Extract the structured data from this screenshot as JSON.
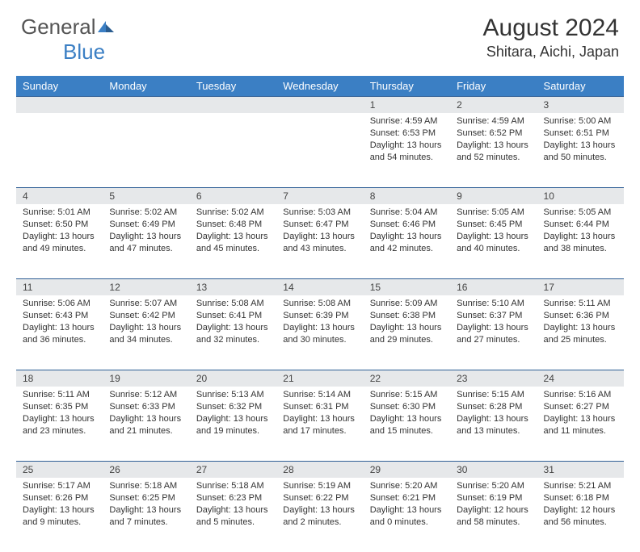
{
  "logo": {
    "word1": "General",
    "word2": "Blue"
  },
  "title": "August 2024",
  "location": "Shitara, Aichi, Japan",
  "colors": {
    "header_bg": "#3b7fc4",
    "daynum_bg": "#e6e8ea",
    "border": "#2f5f96"
  },
  "day_headers": [
    "Sunday",
    "Monday",
    "Tuesday",
    "Wednesday",
    "Thursday",
    "Friday",
    "Saturday"
  ],
  "weeks": [
    [
      null,
      null,
      null,
      null,
      {
        "n": "1",
        "sr": "4:59 AM",
        "ss": "6:53 PM",
        "dl": "13 hours and 54 minutes."
      },
      {
        "n": "2",
        "sr": "4:59 AM",
        "ss": "6:52 PM",
        "dl": "13 hours and 52 minutes."
      },
      {
        "n": "3",
        "sr": "5:00 AM",
        "ss": "6:51 PM",
        "dl": "13 hours and 50 minutes."
      }
    ],
    [
      {
        "n": "4",
        "sr": "5:01 AM",
        "ss": "6:50 PM",
        "dl": "13 hours and 49 minutes."
      },
      {
        "n": "5",
        "sr": "5:02 AM",
        "ss": "6:49 PM",
        "dl": "13 hours and 47 minutes."
      },
      {
        "n": "6",
        "sr": "5:02 AM",
        "ss": "6:48 PM",
        "dl": "13 hours and 45 minutes."
      },
      {
        "n": "7",
        "sr": "5:03 AM",
        "ss": "6:47 PM",
        "dl": "13 hours and 43 minutes."
      },
      {
        "n": "8",
        "sr": "5:04 AM",
        "ss": "6:46 PM",
        "dl": "13 hours and 42 minutes."
      },
      {
        "n": "9",
        "sr": "5:05 AM",
        "ss": "6:45 PM",
        "dl": "13 hours and 40 minutes."
      },
      {
        "n": "10",
        "sr": "5:05 AM",
        "ss": "6:44 PM",
        "dl": "13 hours and 38 minutes."
      }
    ],
    [
      {
        "n": "11",
        "sr": "5:06 AM",
        "ss": "6:43 PM",
        "dl": "13 hours and 36 minutes."
      },
      {
        "n": "12",
        "sr": "5:07 AM",
        "ss": "6:42 PM",
        "dl": "13 hours and 34 minutes."
      },
      {
        "n": "13",
        "sr": "5:08 AM",
        "ss": "6:41 PM",
        "dl": "13 hours and 32 minutes."
      },
      {
        "n": "14",
        "sr": "5:08 AM",
        "ss": "6:39 PM",
        "dl": "13 hours and 30 minutes."
      },
      {
        "n": "15",
        "sr": "5:09 AM",
        "ss": "6:38 PM",
        "dl": "13 hours and 29 minutes."
      },
      {
        "n": "16",
        "sr": "5:10 AM",
        "ss": "6:37 PM",
        "dl": "13 hours and 27 minutes."
      },
      {
        "n": "17",
        "sr": "5:11 AM",
        "ss": "6:36 PM",
        "dl": "13 hours and 25 minutes."
      }
    ],
    [
      {
        "n": "18",
        "sr": "5:11 AM",
        "ss": "6:35 PM",
        "dl": "13 hours and 23 minutes."
      },
      {
        "n": "19",
        "sr": "5:12 AM",
        "ss": "6:33 PM",
        "dl": "13 hours and 21 minutes."
      },
      {
        "n": "20",
        "sr": "5:13 AM",
        "ss": "6:32 PM",
        "dl": "13 hours and 19 minutes."
      },
      {
        "n": "21",
        "sr": "5:14 AM",
        "ss": "6:31 PM",
        "dl": "13 hours and 17 minutes."
      },
      {
        "n": "22",
        "sr": "5:15 AM",
        "ss": "6:30 PM",
        "dl": "13 hours and 15 minutes."
      },
      {
        "n": "23",
        "sr": "5:15 AM",
        "ss": "6:28 PM",
        "dl": "13 hours and 13 minutes."
      },
      {
        "n": "24",
        "sr": "5:16 AM",
        "ss": "6:27 PM",
        "dl": "13 hours and 11 minutes."
      }
    ],
    [
      {
        "n": "25",
        "sr": "5:17 AM",
        "ss": "6:26 PM",
        "dl": "13 hours and 9 minutes."
      },
      {
        "n": "26",
        "sr": "5:18 AM",
        "ss": "6:25 PM",
        "dl": "13 hours and 7 minutes."
      },
      {
        "n": "27",
        "sr": "5:18 AM",
        "ss": "6:23 PM",
        "dl": "13 hours and 5 minutes."
      },
      {
        "n": "28",
        "sr": "5:19 AM",
        "ss": "6:22 PM",
        "dl": "13 hours and 2 minutes."
      },
      {
        "n": "29",
        "sr": "5:20 AM",
        "ss": "6:21 PM",
        "dl": "13 hours and 0 minutes."
      },
      {
        "n": "30",
        "sr": "5:20 AM",
        "ss": "6:19 PM",
        "dl": "12 hours and 58 minutes."
      },
      {
        "n": "31",
        "sr": "5:21 AM",
        "ss": "6:18 PM",
        "dl": "12 hours and 56 minutes."
      }
    ]
  ],
  "labels": {
    "sunrise": "Sunrise:",
    "sunset": "Sunset:",
    "daylight": "Daylight:"
  }
}
